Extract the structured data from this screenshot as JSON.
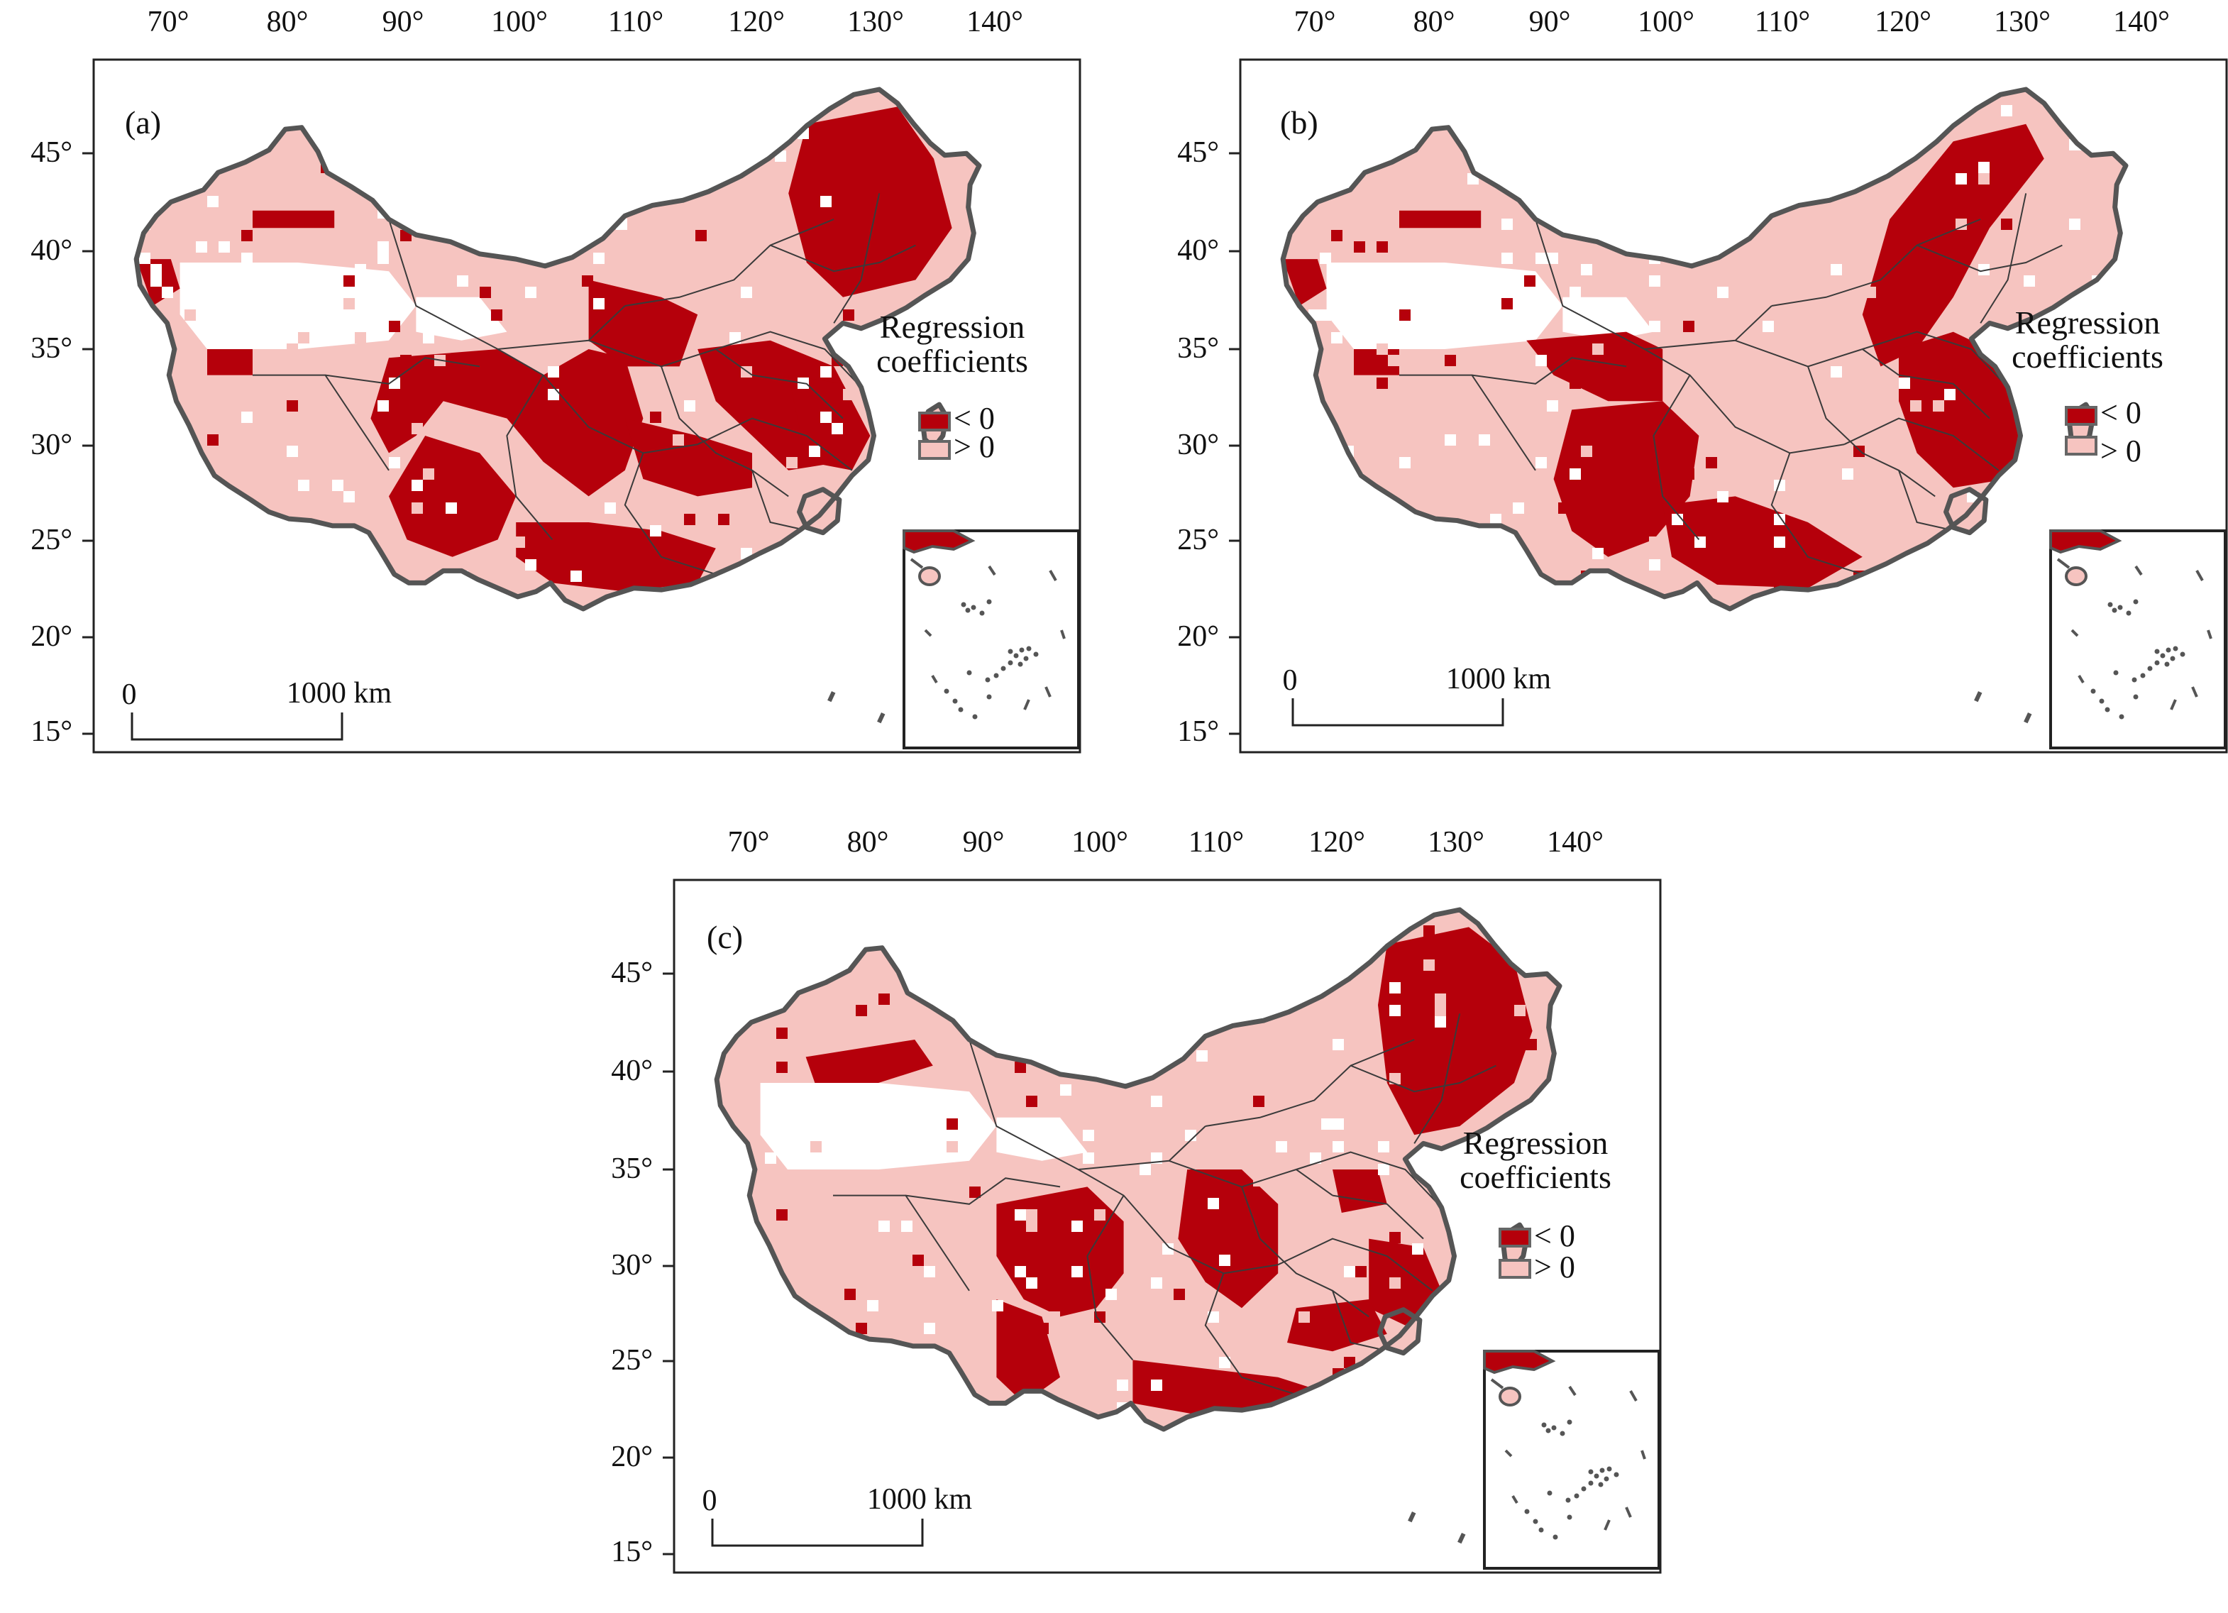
{
  "colors": {
    "negative": "#b5000b",
    "positive": "#f6c4c0",
    "border": "#555555",
    "frame": "#222222",
    "province_line": "#3a3a3a",
    "background": "#ffffff"
  },
  "axes": {
    "lon_labels": [
      "70°",
      "80°",
      "90°",
      "100°",
      "110°",
      "120°",
      "130°",
      "140°"
    ],
    "lat_labels": [
      "45°",
      "40°",
      "35°",
      "30°",
      "25°",
      "20°",
      "15°"
    ]
  },
  "legend": {
    "title_line1": "Regression",
    "title_line2": "coefficients",
    "negative_label": "< 0",
    "positive_label": "> 0"
  },
  "scalebar": {
    "zero_label": "0",
    "distance_label": "1000 km"
  },
  "panels": [
    {
      "label": "(a)",
      "pattern": "a"
    },
    {
      "label": "(b)",
      "pattern": "b"
    },
    {
      "label": "(c)",
      "pattern": "c"
    }
  ]
}
